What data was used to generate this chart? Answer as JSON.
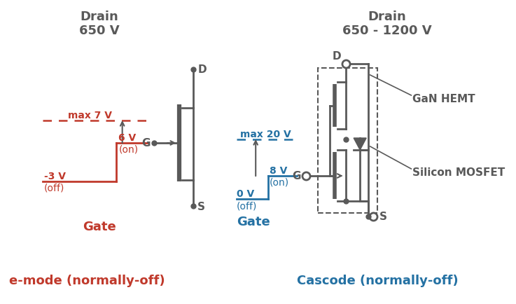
{
  "bg_color": "#ffffff",
  "dark_gray": "#595959",
  "red_color": "#c0392b",
  "blue_color": "#2471a3",
  "fig_width": 7.37,
  "fig_height": 4.35,
  "left_title1": "Drain",
  "left_title2": "650 V",
  "right_title1": "Drain",
  "right_title2": "650 - 1200 V",
  "left_bottom": "e-mode (normally-off)",
  "right_bottom": "Cascode (normally-off)"
}
